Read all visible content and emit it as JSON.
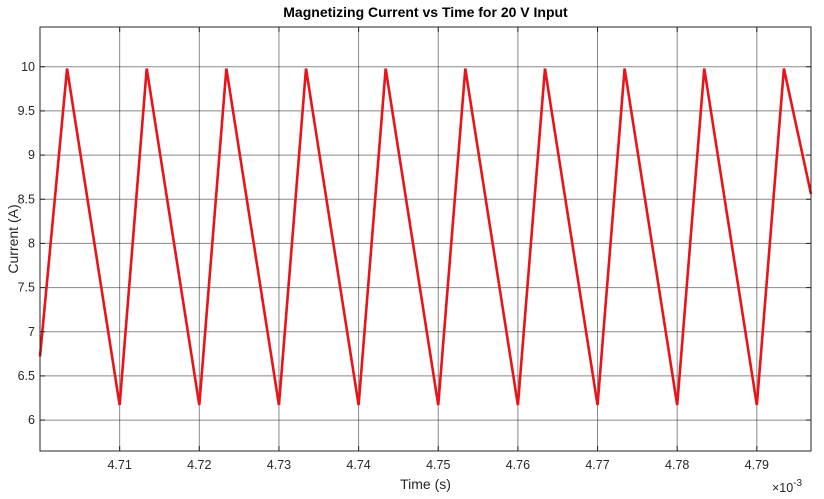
{
  "chart_data": {
    "type": "line",
    "title": "Magnetizing Current vs Time for 20 V Input",
    "xlabel": "Time (s)",
    "ylabel": "Current (A)",
    "x_exponent_label": "×10",
    "x_exponent_power": "-3",
    "xlim": [
      4.7,
      4.7968
    ],
    "ylim": [
      5.65,
      10.45
    ],
    "x_ticks": [
      4.71,
      4.72,
      4.73,
      4.74,
      4.75,
      4.76,
      4.77,
      4.78,
      4.79
    ],
    "x_tick_labels": [
      "4.71",
      "4.72",
      "4.73",
      "4.74",
      "4.75",
      "4.76",
      "4.77",
      "4.78",
      "4.79"
    ],
    "y_ticks": [
      6,
      6.5,
      7,
      7.5,
      8,
      8.5,
      9,
      9.5,
      10
    ],
    "y_tick_labels": [
      "6",
      "6.5",
      "7",
      "7.5",
      "8",
      "8.5",
      "9",
      "9.5",
      "10"
    ],
    "grid": true,
    "line_color": "#e8141a",
    "series": [
      {
        "x": [
          4.7,
          4.7034,
          4.71,
          4.7134,
          4.72,
          4.7234,
          4.73,
          4.7334,
          4.74,
          4.7434,
          4.75,
          4.7534,
          4.76,
          4.7634,
          4.77,
          4.7734,
          4.78,
          4.7834,
          4.79,
          4.7934,
          4.7968
        ],
        "y": [
          6.72,
          9.98,
          6.17,
          9.98,
          6.17,
          9.98,
          6.17,
          9.98,
          6.17,
          9.98,
          6.17,
          9.98,
          6.17,
          9.98,
          6.17,
          9.98,
          6.17,
          9.98,
          6.17,
          9.98,
          8.56
        ]
      }
    ]
  }
}
